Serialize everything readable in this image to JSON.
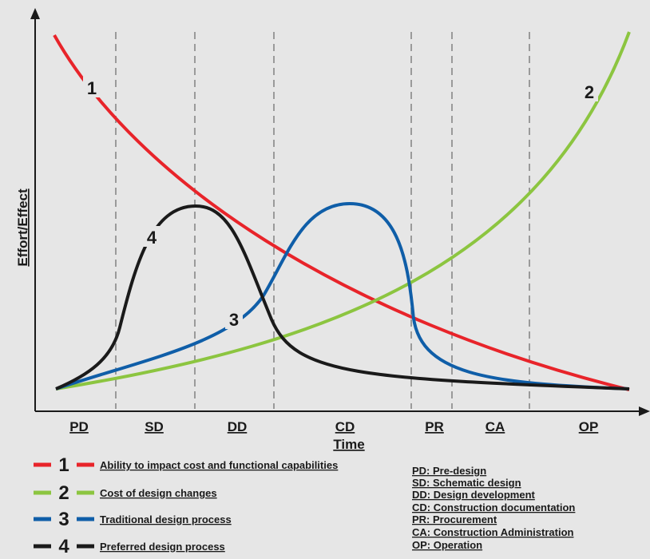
{
  "axes": {
    "xlabel": "Time",
    "ylabel": "Effort/Effect"
  },
  "phases": [
    "PD",
    "SD",
    "DD",
    "CD",
    "PR",
    "CA",
    "OP"
  ],
  "curve_numbers": [
    "1",
    "2",
    "3",
    "4"
  ],
  "colors": {
    "curve1": "#e8242a",
    "curve2": "#8cc540",
    "curve3": "#0f5ea8",
    "curve4": "#1a1a1a",
    "background": "#e6e6e6"
  },
  "legend": [
    {
      "num": "1",
      "text": "Ability to impact cost and functional capabilities",
      "color": "#e8242a"
    },
    {
      "num": "2",
      "text": "Cost of design changes",
      "color": "#8cc540"
    },
    {
      "num": "3",
      "text": "Traditional design process",
      "color": "#0f5ea8"
    },
    {
      "num": "4",
      "text": "Preferred design process",
      "color": "#1a1a1a"
    }
  ],
  "abbreviations": [
    "PD: Pre-design",
    "SD: Schematic design",
    "DD: Design development",
    "CD: Construction documentation",
    "PR: Procurement",
    "CA: Construction Administration",
    "OP: Operation"
  ]
}
